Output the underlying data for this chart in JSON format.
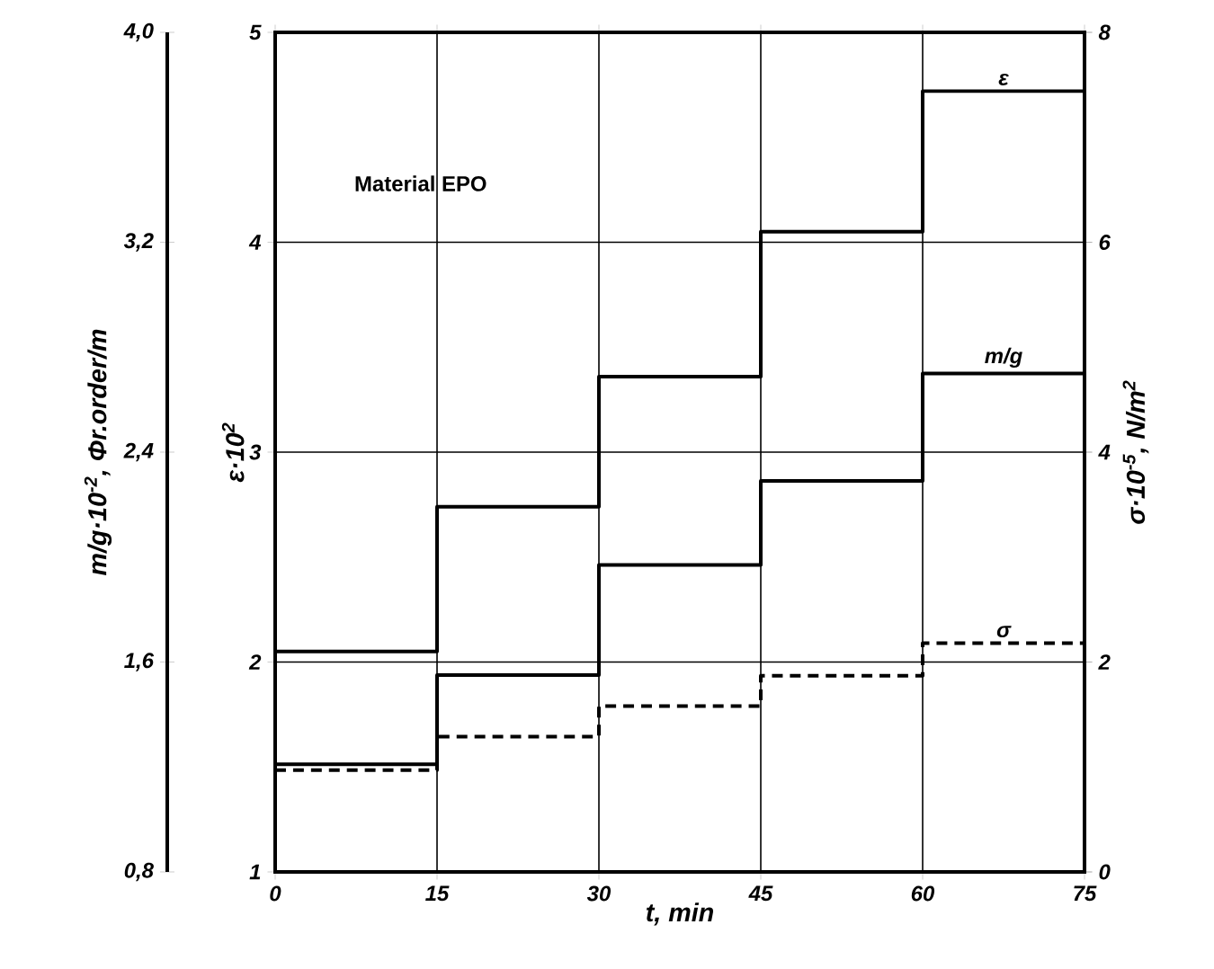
{
  "chart_data": {
    "type": "step",
    "annotations": [
      "Material EPO"
    ],
    "xlabel": "t, min",
    "ylabel": "ε·10$^{2}$",
    "y2label": "σ·10$^{-5}$, N/m$^{2}$",
    "y3label": "m/g·10$^{-2}$, Φr.order/m",
    "x": [
      0,
      15,
      30,
      45,
      60,
      75
    ],
    "xlim": [
      0,
      75
    ],
    "xticks": [
      0,
      15,
      30,
      45,
      60,
      75
    ],
    "ylim": [
      1,
      5
    ],
    "yticks": [
      1,
      2,
      3,
      4,
      5
    ],
    "y2lim": [
      0,
      8
    ],
    "y2ticks": [
      0,
      2,
      4,
      6,
      8
    ],
    "y3lim": [
      0.8,
      4.0
    ],
    "y3ticks": [
      {
        "value": 0.8,
        "label": "0,8"
      },
      {
        "value": 1.6,
        "label": "1,6"
      },
      {
        "value": 2.4,
        "label": "2,4"
      },
      {
        "value": 3.2,
        "label": "3,2"
      },
      {
        "value": 4.0,
        "label": "4,0"
      }
    ],
    "grid": true,
    "series": [
      {
        "name": "ε",
        "color": "#000000",
        "line_style": "solid",
        "values": [
          2.05,
          2.74,
          3.36,
          4.05,
          4.72,
          4.72
        ]
      },
      {
        "name": "m/g",
        "color": "#000000",
        "line_style": "solid",
        "axis": "y3",
        "values": [
          1.21,
          1.55,
          1.97,
          2.29,
          2.7,
          2.7
        ]
      },
      {
        "name": "σ",
        "color": "#000000",
        "line_style": "dashed",
        "axis": "y2",
        "values": [
          0.97,
          1.29,
          1.58,
          1.87,
          2.18,
          2.18
        ]
      }
    ]
  }
}
